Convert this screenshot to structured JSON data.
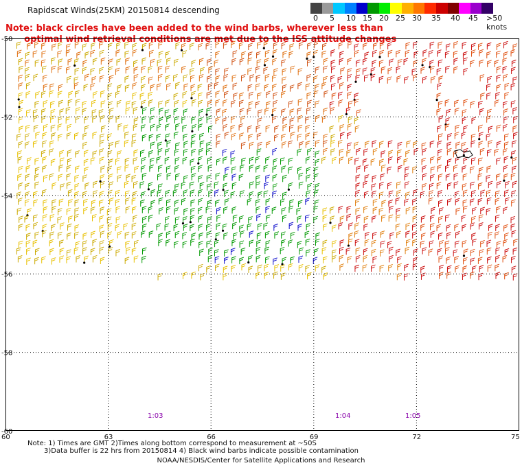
{
  "header": {
    "title": "Rapidscat Winds(25KM) 20150814 descending",
    "note_line1": "Note: black circles have been added to the wind barbs, wherever less than",
    "note_line2": "      optimal wind retrieval conditions are met due to the ISS attitude changes"
  },
  "legend": {
    "labels": [
      "0",
      "5",
      "10",
      "15",
      "20",
      "25",
      "30",
      "35",
      "40",
      "45",
      ">50 knots"
    ],
    "colors": [
      "#444444",
      "#9a9a9a",
      "#00c8ff",
      "#0080ff",
      "#0000cc",
      "#009900",
      "#00ee00",
      "#ffff00",
      "#ffb000",
      "#ff7700",
      "#ff2a00",
      "#cc0000",
      "#800000",
      "#ff00ff",
      "#9900cc",
      "#330066"
    ]
  },
  "map": {
    "lat_labels": [
      "-50",
      "-52",
      "-54",
      "-56",
      "-58",
      "-60"
    ],
    "lon_labels": [
      "60",
      "63",
      "66",
      "69",
      "72",
      "75"
    ],
    "time_labels": [
      "1:03",
      "1:04",
      "1:05"
    ]
  },
  "footer": {
    "note1": "Note: 1) Times are GMT 2)Times along bottom correspond to measurement at ~50S",
    "note2": "3)Data buffer is 22 hrs from 20150814 4) Black wind barbs indicate possible contamination",
    "credit": "NOAA/NESDIS/Center for Satellite Applications and Research"
  }
}
